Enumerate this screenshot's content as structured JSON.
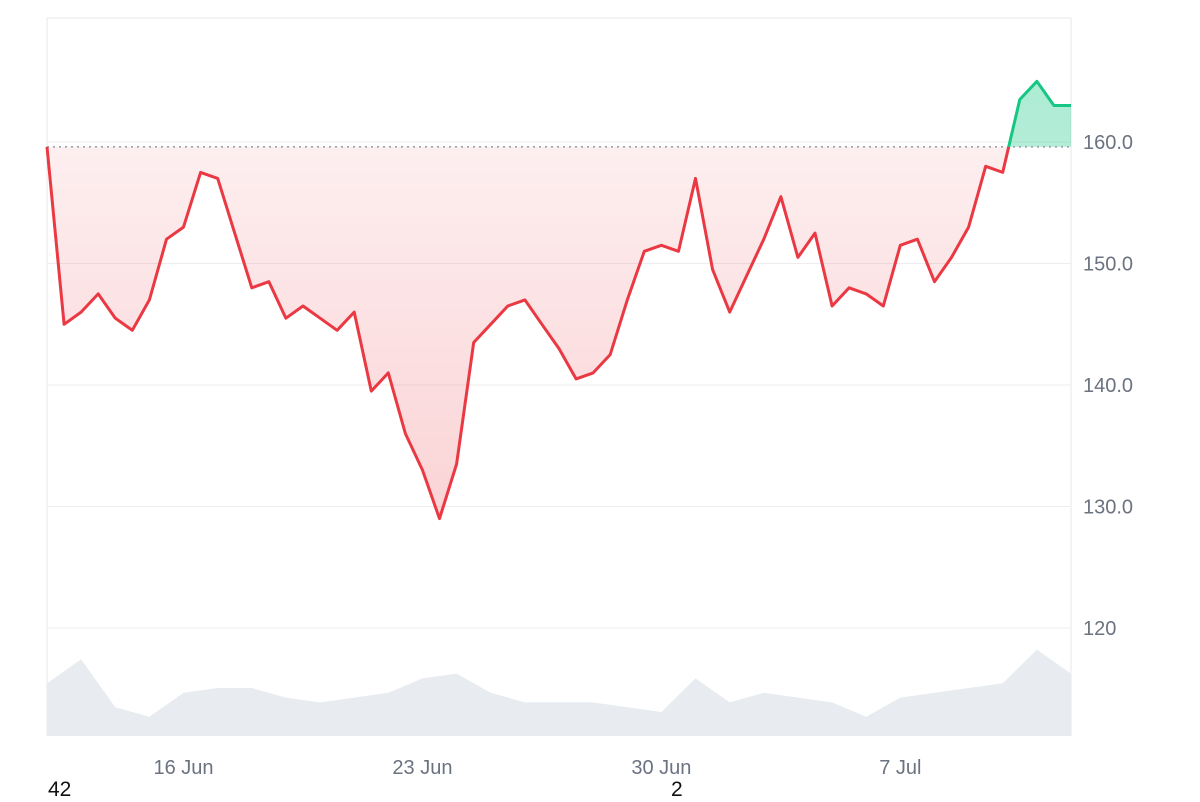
{
  "chart_data": {
    "type": "line",
    "subtype": "price-with-volume",
    "ylim": [
      110,
      170
    ],
    "yticks": [
      {
        "value": 160,
        "label": "160.0"
      },
      {
        "value": 150,
        "label": "150.0"
      },
      {
        "value": 140,
        "label": "140.0"
      },
      {
        "value": 130,
        "label": "130.0"
      },
      {
        "value": 120,
        "label": "120"
      }
    ],
    "xrange": [
      "2025-06-12",
      "2025-07-12"
    ],
    "xticks": [
      {
        "date": "2025-06-16",
        "label": "16 Jun"
      },
      {
        "date": "2025-06-23",
        "label": "23 Jun"
      },
      {
        "date": "2025-06-30",
        "label": "30 Jun"
      },
      {
        "date": "2025-07-07",
        "label": "7 Jul"
      }
    ],
    "baseline": 159.6,
    "grid": true,
    "colors": {
      "up": "#16c784",
      "down": "#ea3943",
      "volume": "#e8ecf0",
      "grid": "#ededed",
      "baseline": "#9ca3af"
    },
    "series": [
      {
        "x": [
          "2025-06-12",
          "2025-06-12T12",
          "2025-06-13",
          "2025-06-13T12",
          "2025-06-14",
          "2025-06-14T12",
          "2025-06-15",
          "2025-06-15T12",
          "2025-06-16",
          "2025-06-16T12",
          "2025-06-17",
          "2025-06-17T12",
          "2025-06-18",
          "2025-06-18T12",
          "2025-06-19",
          "2025-06-19T12",
          "2025-06-20",
          "2025-06-20T12",
          "2025-06-21",
          "2025-06-21T12",
          "2025-06-22",
          "2025-06-22T12",
          "2025-06-23",
          "2025-06-23T12",
          "2025-06-24",
          "2025-06-24T12",
          "2025-06-25",
          "2025-06-25T12",
          "2025-06-26",
          "2025-06-26T12",
          "2025-06-27",
          "2025-06-27T12",
          "2025-06-28",
          "2025-06-28T12",
          "2025-06-29",
          "2025-06-29T12",
          "2025-06-30",
          "2025-06-30T12",
          "2025-07-01",
          "2025-07-01T12",
          "2025-07-02",
          "2025-07-02T12",
          "2025-07-03",
          "2025-07-03T12",
          "2025-07-04",
          "2025-07-04T12",
          "2025-07-05",
          "2025-07-05T12",
          "2025-07-06",
          "2025-07-06T12",
          "2025-07-07",
          "2025-07-07T12",
          "2025-07-08",
          "2025-07-08T12",
          "2025-07-09",
          "2025-07-09T12",
          "2025-07-10",
          "2025-07-10T12",
          "2025-07-11",
          "2025-07-11T12",
          "2025-07-12"
        ],
        "y": [
          159.6,
          145.0,
          146.0,
          147.5,
          145.5,
          144.5,
          147.0,
          152.0,
          153.0,
          157.5,
          157.0,
          152.5,
          148.0,
          148.5,
          145.5,
          146.5,
          145.5,
          144.5,
          146.0,
          139.5,
          141.0,
          136.0,
          133.0,
          129.0,
          133.5,
          143.5,
          145.0,
          146.5,
          147.0,
          145.0,
          143.0,
          140.5,
          141.0,
          142.5,
          147.0,
          151.0,
          151.5,
          151.0,
          157.0,
          149.5,
          146.0,
          149.0,
          152.0,
          155.5,
          150.5,
          152.5,
          146.5,
          148.0,
          147.5,
          146.5,
          151.5,
          152.0,
          148.5,
          150.5,
          153.0,
          158.0,
          157.5,
          163.5,
          165.0,
          163.0,
          163.0
        ]
      }
    ],
    "volume": [
      {
        "x": "2025-06-12",
        "v": 0.55
      },
      {
        "x": "2025-06-13",
        "v": 0.8
      },
      {
        "x": "2025-06-14",
        "v": 0.3
      },
      {
        "x": "2025-06-15",
        "v": 0.2
      },
      {
        "x": "2025-06-16",
        "v": 0.45
      },
      {
        "x": "2025-06-17",
        "v": 0.5
      },
      {
        "x": "2025-06-18",
        "v": 0.5
      },
      {
        "x": "2025-06-19",
        "v": 0.4
      },
      {
        "x": "2025-06-20",
        "v": 0.35
      },
      {
        "x": "2025-06-21",
        "v": 0.4
      },
      {
        "x": "2025-06-22",
        "v": 0.45
      },
      {
        "x": "2025-06-23",
        "v": 0.6
      },
      {
        "x": "2025-06-24",
        "v": 0.65
      },
      {
        "x": "2025-06-25",
        "v": 0.45
      },
      {
        "x": "2025-06-26",
        "v": 0.35
      },
      {
        "x": "2025-06-27",
        "v": 0.35
      },
      {
        "x": "2025-06-28",
        "v": 0.35
      },
      {
        "x": "2025-06-29",
        "v": 0.3
      },
      {
        "x": "2025-06-30",
        "v": 0.25
      },
      {
        "x": "2025-07-01",
        "v": 0.6
      },
      {
        "x": "2025-07-02",
        "v": 0.35
      },
      {
        "x": "2025-07-03",
        "v": 0.45
      },
      {
        "x": "2025-07-04",
        "v": 0.4
      },
      {
        "x": "2025-07-05",
        "v": 0.35
      },
      {
        "x": "2025-07-06",
        "v": 0.2
      },
      {
        "x": "2025-07-07",
        "v": 0.4
      },
      {
        "x": "2025-07-08",
        "v": 0.45
      },
      {
        "x": "2025-07-09",
        "v": 0.5
      },
      {
        "x": "2025-07-10",
        "v": 0.55
      },
      {
        "x": "2025-07-11",
        "v": 0.9
      },
      {
        "x": "2025-07-12",
        "v": 0.65
      }
    ]
  },
  "footer": {
    "left_value": "42",
    "mid_value": "2"
  }
}
